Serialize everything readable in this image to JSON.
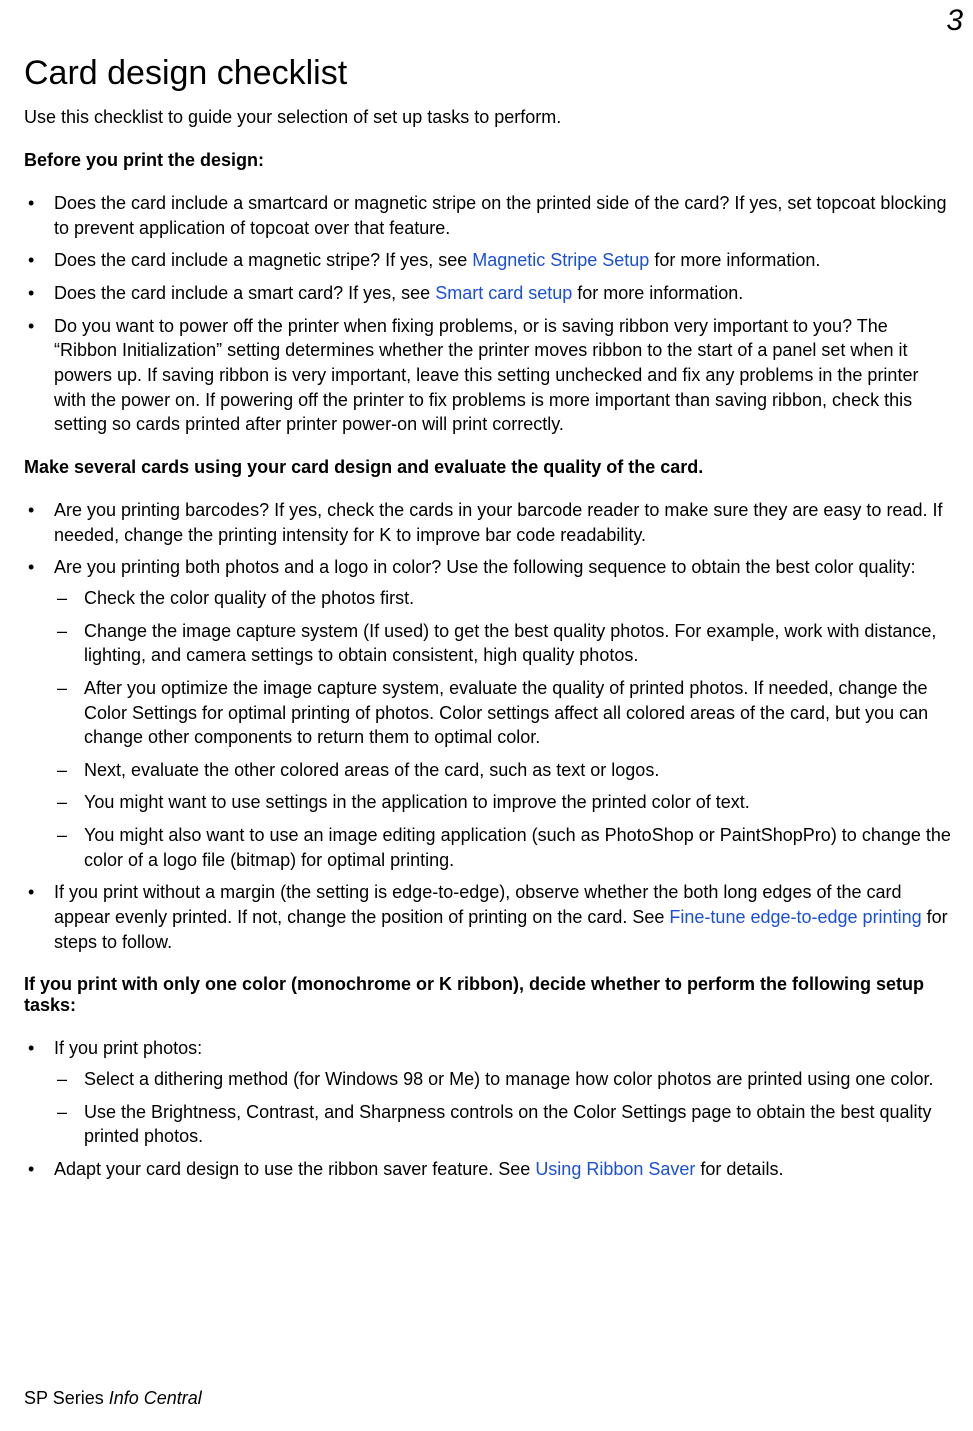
{
  "page_number": "3",
  "title": "Card design checklist",
  "intro": "Use this checklist to guide your selection of set up tasks to perform.",
  "section1_heading": "Before you print the design:",
  "s1_b1": "Does the card include a smartcard or magnetic stripe on the printed side of the card? If yes, set topcoat blocking to prevent application of topcoat over that feature.",
  "s1_b2_a": "Does the card include a magnetic stripe? If yes, see ",
  "s1_b2_link": "Magnetic Stripe Setup",
  "s1_b2_b": " for more information.",
  "s1_b3_a": "Does the card include a smart card? If yes, see ",
  "s1_b3_link": "Smart card setup",
  "s1_b3_b": " for more information.",
  "s1_b4": "Do you want to power off the printer when fixing problems, or is saving ribbon very important to you? The “Ribbon Initialization” setting determines whether the printer moves ribbon to the start of a panel set when it powers up. If saving ribbon is very important, leave this setting unchecked and fix any problems in the printer with the power on. If powering off the printer to fix problems is more important than saving ribbon, check this setting so cards printed after printer power-on will print correctly.",
  "section2_heading": "Make several cards using your card design and evaluate the quality of the card.",
  "s2_b1": "Are you printing barcodes? If yes, check the cards in your barcode reader to make sure they are easy to read. If needed, change the printing intensity for K to improve bar code readability.",
  "s2_b2": "Are you printing both photos and a logo in color? Use the following sequence to obtain the best color quality:",
  "s2_b2_d1": "Check the color quality of the photos first.",
  "s2_b2_d2": "Change the image capture system (If used) to get the best quality photos. For example, work with distance, lighting, and camera settings to obtain consistent, high quality photos.",
  "s2_b2_d3": "After you optimize the image capture system, evaluate the quality of printed photos. If needed, change the Color Settings for optimal printing of photos. Color settings affect all colored areas of the card, but you can change other components to return them to optimal color.",
  "s2_b2_d4": "Next, evaluate the other colored areas of the card, such as text or logos.",
  "s2_b2_d5": "You might want to use settings in the application to improve the printed color of text.",
  "s2_b2_d6": "You might also want to use an image editing application (such as PhotoShop or PaintShopPro) to change the color of a logo file (bitmap) for optimal printing.",
  "s2_b3_a": "If you print without a margin (the setting is edge-to-edge), observe whether the both long edges of the card appear evenly printed. If not, change the position of printing on the card. See ",
  "s2_b3_link": "Fine-tune edge-to-edge printing",
  "s2_b3_b": " for steps to follow.",
  "section3_heading": "If you print with only one color (monochrome or K ribbon), decide whether to perform the following setup tasks:",
  "s3_b1": "If you print photos:",
  "s3_b1_d1": "Select a dithering method (for Windows 98 or Me) to manage how color photos are printed using one color.",
  "s3_b1_d2": "Use the Brightness, Contrast, and Sharpness controls on the Color Settings page to obtain the best quality printed photos.",
  "s3_b2_a": "Adapt your card design to use the ribbon saver feature. See ",
  "s3_b2_link": "Using Ribbon Saver",
  "s3_b2_b": " for details.",
  "footer_a": "SP Series ",
  "footer_b": "Info Central"
}
